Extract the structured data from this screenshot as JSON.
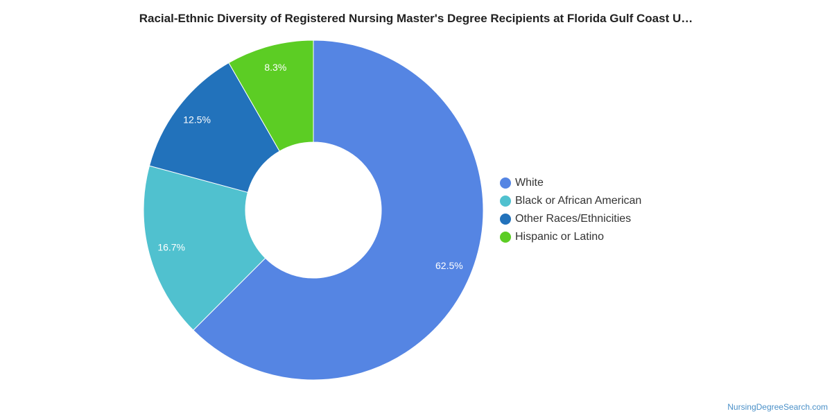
{
  "chart_data": {
    "type": "pie",
    "donut": true,
    "title": "Racial-Ethnic Diversity of Registered Nursing Master's Degree Recipients at Florida Gulf Coast U…",
    "categories": [
      "White",
      "Black or African American",
      "Other Races/Ethnicities",
      "Hispanic or Latino"
    ],
    "values": [
      62.5,
      16.7,
      12.5,
      8.3
    ],
    "value_labels": [
      "62.5%",
      "16.7%",
      "12.5%",
      "8.3%"
    ],
    "colors": [
      "#5585e3",
      "#50c1cf",
      "#2272bb",
      "#5ccd24"
    ],
    "legend_position": "right"
  },
  "credit": "NursingDegreeSearch.com"
}
